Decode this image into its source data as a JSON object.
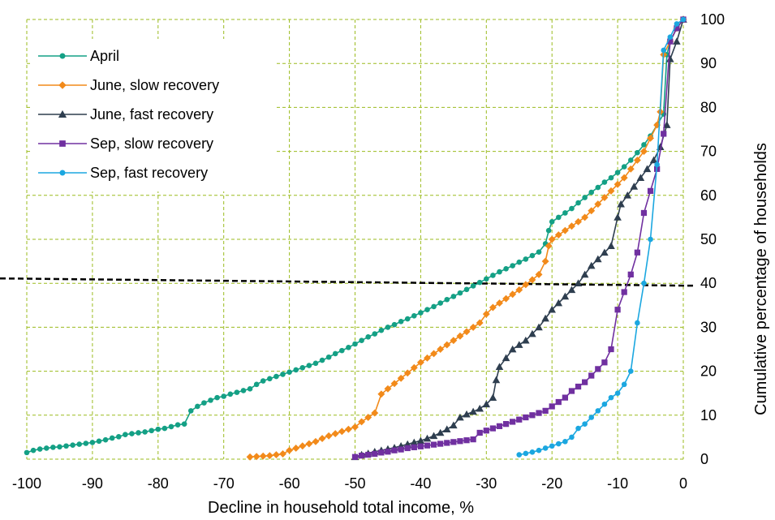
{
  "chart_data": {
    "type": "line",
    "title": "",
    "xlabel": "Decline in household total income, %",
    "ylabel": "Cumulative percentage of households",
    "xlim": [
      -100,
      0
    ],
    "ylim": [
      0,
      100
    ],
    "xticks": [
      -100,
      -90,
      -80,
      -70,
      -60,
      -50,
      -40,
      -30,
      -20,
      -10,
      0
    ],
    "yticks": [
      0,
      10,
      20,
      30,
      40,
      50,
      60,
      70,
      80,
      90,
      100
    ],
    "grid": true,
    "grid_color": "#9BBB1E",
    "reference_line": {
      "y": 40,
      "style": "dashed",
      "color": "#000000"
    },
    "legend": {
      "position": "top-left"
    },
    "series": [
      {
        "name": "April",
        "color": "#14A085",
        "marker": "circle",
        "points": [
          [
            -100,
            1.5
          ],
          [
            -99,
            2
          ],
          [
            -98,
            2.3
          ],
          [
            -97,
            2.5
          ],
          [
            -96,
            2.7
          ],
          [
            -95,
            2.8
          ],
          [
            -94,
            3
          ],
          [
            -93,
            3.2
          ],
          [
            -92,
            3.4
          ],
          [
            -91,
            3.6
          ],
          [
            -90,
            3.8
          ],
          [
            -89,
            4.1
          ],
          [
            -88,
            4.4
          ],
          [
            -87,
            4.8
          ],
          [
            -86,
            5.1
          ],
          [
            -85,
            5.6
          ],
          [
            -84,
            5.8
          ],
          [
            -83,
            6
          ],
          [
            -82,
            6.2
          ],
          [
            -81,
            6.5
          ],
          [
            -80,
            6.8
          ],
          [
            -79,
            7
          ],
          [
            -78,
            7.4
          ],
          [
            -77,
            7.8
          ],
          [
            -76,
            8
          ],
          [
            -75,
            11
          ],
          [
            -74,
            12
          ],
          [
            -73,
            12.8
          ],
          [
            -72,
            13.4
          ],
          [
            -71,
            14
          ],
          [
            -70,
            14.3
          ],
          [
            -69,
            14.8
          ],
          [
            -68,
            15.2
          ],
          [
            -67,
            15.6
          ],
          [
            -66,
            16
          ],
          [
            -65,
            17
          ],
          [
            -64,
            17.8
          ],
          [
            -63,
            18.3
          ],
          [
            -62,
            18.8
          ],
          [
            -61,
            19.3
          ],
          [
            -60,
            19.8
          ],
          [
            -59,
            20.3
          ],
          [
            -58,
            20.8
          ],
          [
            -57,
            21.3
          ],
          [
            -56,
            21.8
          ],
          [
            -55,
            22.5
          ],
          [
            -54,
            23.2
          ],
          [
            -53,
            24
          ],
          [
            -52,
            24.7
          ],
          [
            -51,
            25.4
          ],
          [
            -50,
            26.2
          ],
          [
            -49,
            27
          ],
          [
            -48,
            27.8
          ],
          [
            -47,
            28.5
          ],
          [
            -46,
            29.3
          ],
          [
            -45,
            30
          ],
          [
            -44,
            30.6
          ],
          [
            -43,
            31.3
          ],
          [
            -42,
            31.9
          ],
          [
            -41,
            32.6
          ],
          [
            -40,
            33.3
          ],
          [
            -39,
            34
          ],
          [
            -38,
            34.7
          ],
          [
            -37,
            35.5
          ],
          [
            -36,
            36.3
          ],
          [
            -35,
            37
          ],
          [
            -34,
            37.8
          ],
          [
            -33,
            38.6
          ],
          [
            -32,
            39.4
          ],
          [
            -31,
            40.2
          ],
          [
            -30,
            41
          ],
          [
            -29,
            41.8
          ],
          [
            -28,
            42.6
          ],
          [
            -27,
            43.3
          ],
          [
            -26,
            44
          ],
          [
            -25,
            44.8
          ],
          [
            -24,
            45.5
          ],
          [
            -23,
            46.3
          ],
          [
            -22,
            47.1
          ],
          [
            -21,
            49
          ],
          [
            -20.5,
            52
          ],
          [
            -20,
            54
          ],
          [
            -19,
            55
          ],
          [
            -18,
            56
          ],
          [
            -17,
            57
          ],
          [
            -16,
            58.3
          ],
          [
            -15,
            59.5
          ],
          [
            -14,
            60.7
          ],
          [
            -13,
            61.8
          ],
          [
            -12,
            63
          ],
          [
            -11,
            64
          ],
          [
            -10,
            65.2
          ],
          [
            -9,
            66.5
          ],
          [
            -8,
            68
          ],
          [
            -7,
            69.7
          ],
          [
            -6,
            71.5
          ],
          [
            -5,
            73.5
          ],
          [
            -4,
            76
          ],
          [
            -3,
            78.5
          ],
          [
            -2.5,
            92
          ],
          [
            -2,
            95
          ],
          [
            -1,
            98
          ],
          [
            0,
            100
          ]
        ]
      },
      {
        "name": "June, slow recovery",
        "color": "#F28A1A",
        "marker": "diamond",
        "points": [
          [
            -66,
            0.5
          ],
          [
            -65,
            0.6
          ],
          [
            -64,
            0.7
          ],
          [
            -63,
            0.8
          ],
          [
            -62,
            1
          ],
          [
            -61,
            1.2
          ],
          [
            -60,
            2
          ],
          [
            -59,
            2.5
          ],
          [
            -58,
            3
          ],
          [
            -57,
            3.5
          ],
          [
            -56,
            4
          ],
          [
            -55,
            4.7
          ],
          [
            -54,
            5.3
          ],
          [
            -53,
            5.8
          ],
          [
            -52,
            6.3
          ],
          [
            -51,
            6.8
          ],
          [
            -50,
            7.3
          ],
          [
            -49,
            8.5
          ],
          [
            -48,
            9.5
          ],
          [
            -47,
            10.5
          ],
          [
            -46,
            14.8
          ],
          [
            -45,
            16
          ],
          [
            -44,
            17.2
          ],
          [
            -43,
            18.4
          ],
          [
            -42,
            19.6
          ],
          [
            -41,
            20.8
          ],
          [
            -40,
            22
          ],
          [
            -39,
            23
          ],
          [
            -38,
            24
          ],
          [
            -37,
            25
          ],
          [
            -36,
            26
          ],
          [
            -35,
            27
          ],
          [
            -34,
            28
          ],
          [
            -33,
            29
          ],
          [
            -32,
            30
          ],
          [
            -31,
            31
          ],
          [
            -30,
            33
          ],
          [
            -29,
            34.5
          ],
          [
            -28,
            35.5
          ],
          [
            -27,
            36.5
          ],
          [
            -26,
            37.5
          ],
          [
            -25,
            38.5
          ],
          [
            -24,
            39.7
          ],
          [
            -23,
            40.8
          ],
          [
            -22,
            42
          ],
          [
            -21,
            45
          ],
          [
            -20.5,
            48.5
          ],
          [
            -20,
            50
          ],
          [
            -19,
            51
          ],
          [
            -18,
            52
          ],
          [
            -17,
            53
          ],
          [
            -16,
            54
          ],
          [
            -15,
            55
          ],
          [
            -14,
            56.5
          ],
          [
            -13,
            58
          ],
          [
            -12,
            59.5
          ],
          [
            -11,
            61
          ],
          [
            -10,
            62.5
          ],
          [
            -9,
            64
          ],
          [
            -8,
            66
          ],
          [
            -7,
            68
          ],
          [
            -6,
            70
          ],
          [
            -5,
            73
          ],
          [
            -4,
            76
          ],
          [
            -3.5,
            79
          ],
          [
            -3,
            92
          ],
          [
            -2,
            95
          ],
          [
            -1,
            98
          ],
          [
            0,
            100
          ]
        ]
      },
      {
        "name": "June, fast recovery",
        "color": "#2E3E4F",
        "marker": "triangle",
        "points": [
          [
            -50,
            0.5
          ],
          [
            -49,
            1
          ],
          [
            -48,
            1.3
          ],
          [
            -47,
            1.7
          ],
          [
            -46,
            2
          ],
          [
            -45,
            2.3
          ],
          [
            -44,
            2.6
          ],
          [
            -43,
            3
          ],
          [
            -42,
            3.4
          ],
          [
            -41,
            3.8
          ],
          [
            -40,
            4.2
          ],
          [
            -39,
            4.7
          ],
          [
            -38,
            5.3
          ],
          [
            -37,
            6
          ],
          [
            -36,
            6.8
          ],
          [
            -35,
            7.7
          ],
          [
            -34,
            9.5
          ],
          [
            -33,
            10.2
          ],
          [
            -32,
            10.8
          ],
          [
            -31,
            11.5
          ],
          [
            -30,
            12.5
          ],
          [
            -29,
            14
          ],
          [
            -28.5,
            18
          ],
          [
            -28,
            21
          ],
          [
            -27,
            23
          ],
          [
            -26,
            25
          ],
          [
            -25,
            26
          ],
          [
            -24,
            27
          ],
          [
            -23,
            28.5
          ],
          [
            -22,
            30
          ],
          [
            -21,
            32
          ],
          [
            -20,
            34
          ],
          [
            -19,
            35.5
          ],
          [
            -18,
            37
          ],
          [
            -17,
            38.5
          ],
          [
            -16,
            40
          ],
          [
            -15,
            42
          ],
          [
            -14,
            44
          ],
          [
            -13,
            45.5
          ],
          [
            -12,
            47
          ],
          [
            -11,
            48.5
          ],
          [
            -10,
            55
          ],
          [
            -9.5,
            58
          ],
          [
            -8.5,
            60
          ],
          [
            -7.5,
            62
          ],
          [
            -6.5,
            64
          ],
          [
            -5.5,
            66
          ],
          [
            -4.5,
            68
          ],
          [
            -3.5,
            71
          ],
          [
            -2.5,
            76
          ],
          [
            -2,
            91
          ],
          [
            -1,
            95
          ],
          [
            0,
            100
          ]
        ]
      },
      {
        "name": "Sep, slow recovery",
        "color": "#7030A0",
        "marker": "square",
        "points": [
          [
            -50,
            0.5
          ],
          [
            -49,
            0.8
          ],
          [
            -48,
            1
          ],
          [
            -47,
            1.2
          ],
          [
            -46,
            1.5
          ],
          [
            -45,
            1.7
          ],
          [
            -44,
            2
          ],
          [
            -43,
            2.2
          ],
          [
            -42,
            2.5
          ],
          [
            -41,
            2.7
          ],
          [
            -40,
            2.9
          ],
          [
            -39,
            3.1
          ],
          [
            -38,
            3.3
          ],
          [
            -37,
            3.5
          ],
          [
            -36,
            3.7
          ],
          [
            -35,
            3.9
          ],
          [
            -34,
            4.1
          ],
          [
            -33,
            4.3
          ],
          [
            -32,
            4.5
          ],
          [
            -31,
            6
          ],
          [
            -30,
            6.5
          ],
          [
            -29,
            7
          ],
          [
            -28,
            7.5
          ],
          [
            -27,
            8
          ],
          [
            -26,
            8.5
          ],
          [
            -25,
            9
          ],
          [
            -24,
            9.5
          ],
          [
            -23,
            10
          ],
          [
            -22,
            10.5
          ],
          [
            -21,
            11
          ],
          [
            -20,
            12
          ],
          [
            -19,
            13
          ],
          [
            -18,
            14
          ],
          [
            -17,
            15.5
          ],
          [
            -16,
            16.5
          ],
          [
            -15,
            17.5
          ],
          [
            -14,
            19
          ],
          [
            -13,
            20.5
          ],
          [
            -12,
            22
          ],
          [
            -11,
            25
          ],
          [
            -10,
            34
          ],
          [
            -9,
            38
          ],
          [
            -8,
            42
          ],
          [
            -7,
            47
          ],
          [
            -6,
            56
          ],
          [
            -5,
            61
          ],
          [
            -4,
            66
          ],
          [
            -3,
            74
          ],
          [
            -2,
            95
          ],
          [
            -1,
            98
          ],
          [
            0,
            100
          ]
        ]
      },
      {
        "name": "Sep, fast recovery",
        "color": "#1BA7E0",
        "marker": "circle",
        "points": [
          [
            -25,
            1
          ],
          [
            -24,
            1.3
          ],
          [
            -23,
            1.6
          ],
          [
            -22,
            2
          ],
          [
            -21,
            2.5
          ],
          [
            -20,
            3
          ],
          [
            -19,
            3.5
          ],
          [
            -18,
            4
          ],
          [
            -17,
            5
          ],
          [
            -16,
            7
          ],
          [
            -15,
            8
          ],
          [
            -14,
            9.5
          ],
          [
            -13,
            11
          ],
          [
            -12,
            12.5
          ],
          [
            -11,
            14
          ],
          [
            -10,
            15
          ],
          [
            -9,
            17
          ],
          [
            -8,
            20
          ],
          [
            -7,
            31
          ],
          [
            -6,
            40
          ],
          [
            -5,
            50
          ],
          [
            -4,
            67
          ],
          [
            -3,
            93
          ],
          [
            -2,
            96
          ],
          [
            -1,
            99
          ],
          [
            0,
            100
          ]
        ]
      }
    ]
  }
}
